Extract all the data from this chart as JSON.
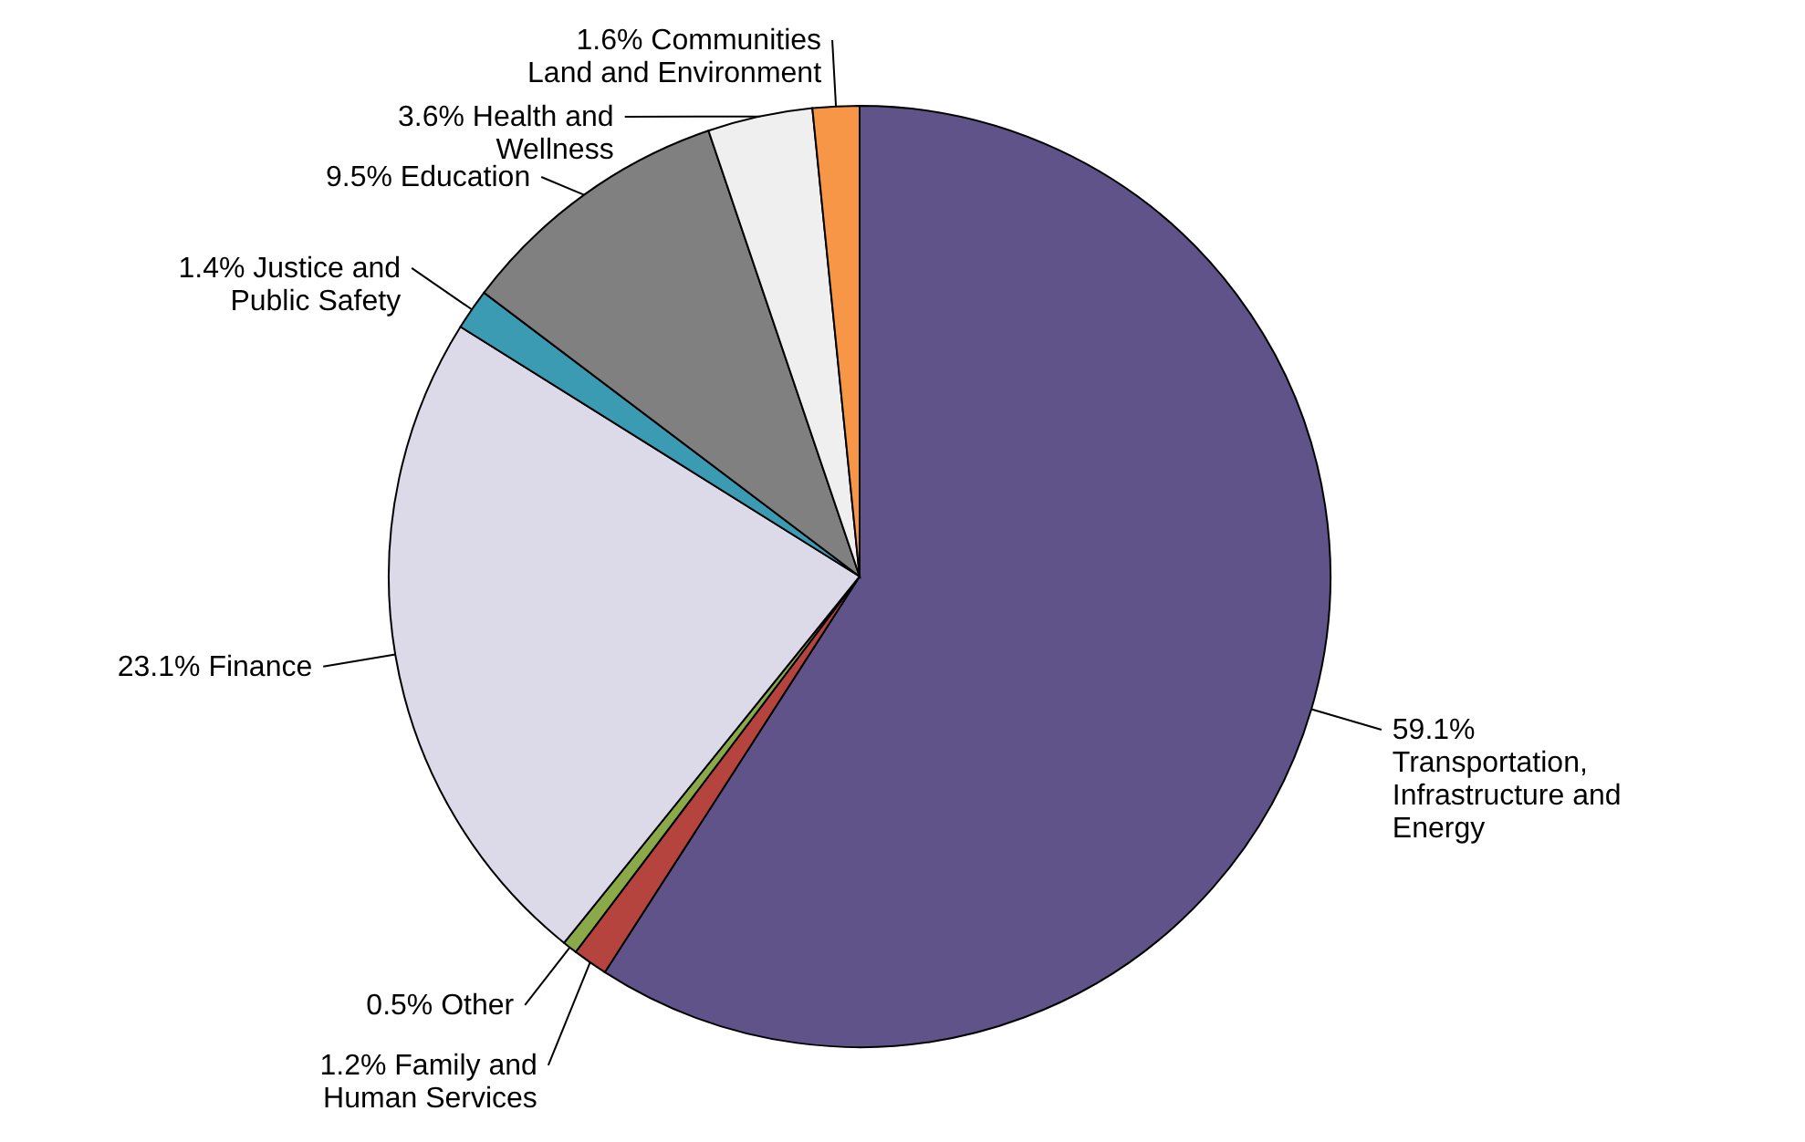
{
  "chart_data": {
    "type": "pie",
    "categories": [
      "Transportation, Infrastructure and Energy",
      "Family and Human Services",
      "Other",
      "Finance",
      "Justice and Public Safety",
      "Education",
      "Health and Wellness",
      "Communities Land and Environment"
    ],
    "values": [
      59.1,
      1.2,
      0.5,
      23.1,
      1.4,
      9.5,
      3.6,
      1.6
    ],
    "value_labels": [
      "59.1%",
      "1.2%",
      "0.5%",
      "23.1%",
      "1.4%",
      "9.5%",
      "3.6%",
      "1.6%"
    ],
    "colors": [
      "#5f5389",
      "#b5443f",
      "#8aaa4a",
      "#dcd9e8",
      "#3a9bb3",
      "#808080",
      "#efefef",
      "#f79646"
    ]
  }
}
